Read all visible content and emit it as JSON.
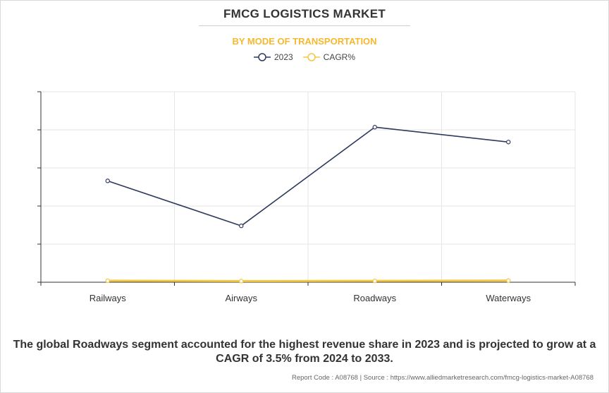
{
  "title": "FMCG LOGISTICS MARKET",
  "subtitle": "BY MODE OF TRANSPORTATION",
  "legend": [
    {
      "label": "2023",
      "color": "#2e3a5c"
    },
    {
      "label": "CAGR%",
      "color": "#f5c842"
    }
  ],
  "chart_data": {
    "type": "line",
    "title": "FMCG LOGISTICS MARKET",
    "subtitle": "BY MODE OF TRANSPORTATION",
    "categories": [
      "Railways",
      "Airways",
      "Roadways",
      "Waterways"
    ],
    "ylim": [
      0,
      5
    ],
    "grid": true,
    "y_tick_labels_shown": false,
    "series": [
      {
        "name": "2023",
        "color": "#2e3a5c",
        "values": [
          2.66,
          1.48,
          4.07,
          3.68
        ]
      },
      {
        "name": "CAGR%",
        "color": "#f5c842",
        "values": [
          0.04,
          0.03,
          0.035,
          0.045
        ]
      }
    ]
  },
  "footnote": "The global Roadways segment accounted for the highest revenue share in 2023 and is projected to grow at a CAGR of 3.5% from 2024 to 2033.",
  "source": "Report Code : A08768  |  Source : https://www.alliedmarketresearch.com/fmcg-logistics-market-A08768"
}
